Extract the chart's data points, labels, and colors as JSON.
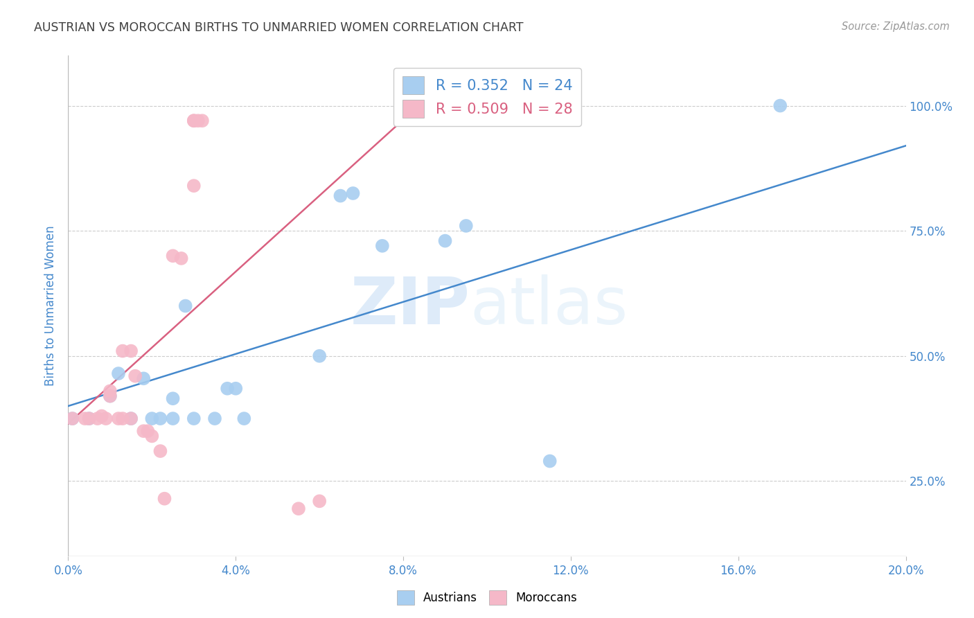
{
  "title": "AUSTRIAN VS MOROCCAN BIRTHS TO UNMARRIED WOMEN CORRELATION CHART",
  "source": "Source: ZipAtlas.com",
  "ylabel": "Births to Unmarried Women",
  "xlim": [
    0.0,
    0.2
  ],
  "ylim": [
    0.1,
    1.1
  ],
  "xticks": [
    0.0,
    0.04,
    0.08,
    0.12,
    0.16,
    0.2
  ],
  "yticks": [
    0.25,
    0.5,
    0.75,
    1.0
  ],
  "watermark_zip": "ZIP",
  "watermark_atlas": "atlas",
  "legend_blue_R": "0.352",
  "legend_blue_N": "24",
  "legend_pink_R": "0.509",
  "legend_pink_N": "28",
  "blue_color": "#a8cef0",
  "pink_color": "#f5b8c8",
  "blue_line_color": "#4488cc",
  "pink_line_color": "#d96080",
  "title_color": "#404040",
  "axis_label_color": "#4488cc",
  "tick_label_color": "#4488cc",
  "blue_dots": [
    [
      0.001,
      0.375
    ],
    [
      0.005,
      0.375
    ],
    [
      0.01,
      0.42
    ],
    [
      0.012,
      0.465
    ],
    [
      0.015,
      0.375
    ],
    [
      0.018,
      0.455
    ],
    [
      0.02,
      0.375
    ],
    [
      0.022,
      0.375
    ],
    [
      0.025,
      0.415
    ],
    [
      0.025,
      0.375
    ],
    [
      0.028,
      0.6
    ],
    [
      0.03,
      0.375
    ],
    [
      0.035,
      0.375
    ],
    [
      0.038,
      0.435
    ],
    [
      0.04,
      0.435
    ],
    [
      0.042,
      0.375
    ],
    [
      0.06,
      0.5
    ],
    [
      0.065,
      0.82
    ],
    [
      0.068,
      0.825
    ],
    [
      0.075,
      0.72
    ],
    [
      0.09,
      0.73
    ],
    [
      0.095,
      0.76
    ],
    [
      0.115,
      0.29
    ],
    [
      0.17,
      1.0
    ]
  ],
  "pink_dots": [
    [
      0.001,
      0.375
    ],
    [
      0.004,
      0.375
    ],
    [
      0.005,
      0.375
    ],
    [
      0.007,
      0.375
    ],
    [
      0.008,
      0.38
    ],
    [
      0.009,
      0.375
    ],
    [
      0.01,
      0.42
    ],
    [
      0.01,
      0.43
    ],
    [
      0.012,
      0.375
    ],
    [
      0.013,
      0.375
    ],
    [
      0.013,
      0.51
    ],
    [
      0.015,
      0.51
    ],
    [
      0.015,
      0.375
    ],
    [
      0.016,
      0.46
    ],
    [
      0.018,
      0.35
    ],
    [
      0.019,
      0.35
    ],
    [
      0.02,
      0.34
    ],
    [
      0.022,
      0.31
    ],
    [
      0.023,
      0.215
    ],
    [
      0.025,
      0.7
    ],
    [
      0.027,
      0.695
    ],
    [
      0.03,
      0.84
    ],
    [
      0.03,
      0.97
    ],
    [
      0.03,
      0.97
    ],
    [
      0.031,
      0.97
    ],
    [
      0.032,
      0.97
    ],
    [
      0.055,
      0.195
    ],
    [
      0.06,
      0.21
    ]
  ],
  "blue_line": [
    [
      0.0,
      0.4
    ],
    [
      0.2,
      0.92
    ]
  ],
  "pink_line": [
    [
      0.0,
      0.365
    ],
    [
      0.085,
      1.01
    ]
  ]
}
